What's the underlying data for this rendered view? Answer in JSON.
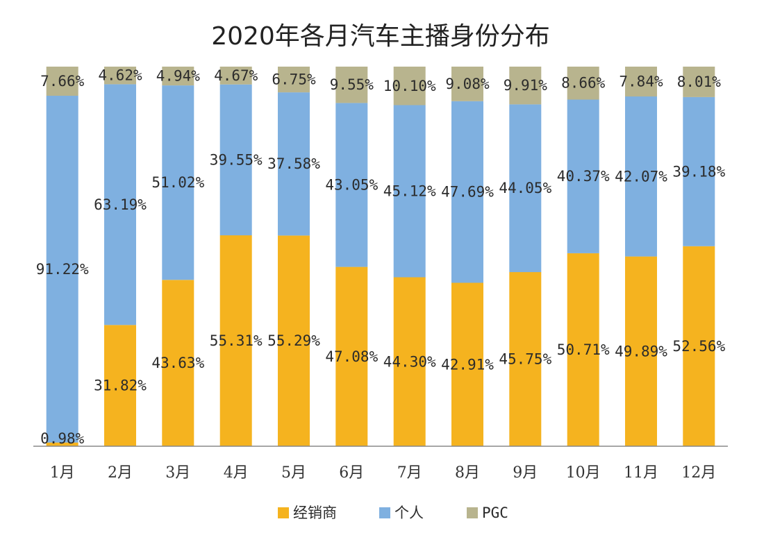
{
  "chart_data": {
    "type": "bar",
    "stacked": true,
    "normalized": true,
    "title": "2020年各月汽车主播身份分布",
    "categories": [
      "1月",
      "2月",
      "3月",
      "4月",
      "5月",
      "6月",
      "7月",
      "8月",
      "9月",
      "10月",
      "11月",
      "12月"
    ],
    "series": [
      {
        "name": "经销商",
        "color": "#f5b31f",
        "values": [
          0.98,
          31.82,
          43.63,
          55.31,
          55.29,
          47.08,
          44.3,
          42.91,
          45.75,
          50.71,
          49.89,
          52.56
        ],
        "labels": [
          "0.98%",
          "31.82%",
          "43.63%",
          "55.31%",
          "55.29%",
          "47.08%",
          "44.30%",
          "42.91%",
          "45.75%",
          "50.71%",
          "49.89%",
          "52.56%"
        ]
      },
      {
        "name": "个人",
        "color": "#7fb0e0",
        "values": [
          91.22,
          63.19,
          51.02,
          39.55,
          37.58,
          43.05,
          45.12,
          47.69,
          44.05,
          40.37,
          42.07,
          39.18
        ],
        "labels": [
          "91.22%",
          "63.19%",
          "51.02%",
          "39.55%",
          "37.58%",
          "43.05%",
          "45.12%",
          "47.69%",
          "44.05%",
          "40.37%",
          "42.07%",
          "39.18%"
        ]
      },
      {
        "name": "PGC",
        "color": "#b8b48e",
        "values": [
          7.66,
          4.62,
          4.94,
          4.67,
          6.75,
          9.55,
          10.1,
          9.08,
          9.91,
          8.66,
          7.84,
          8.01
        ],
        "labels": [
          "7.66%",
          "4.62%",
          "4.94%",
          "4.67%",
          "6.75%",
          "9.55%",
          "10.10%",
          "9.08%",
          "9.91%",
          "8.66%",
          "7.84%",
          "8.01%"
        ]
      }
    ],
    "ylim": [
      0,
      100
    ],
    "grid": false,
    "legend_position": "bottom-center"
  }
}
